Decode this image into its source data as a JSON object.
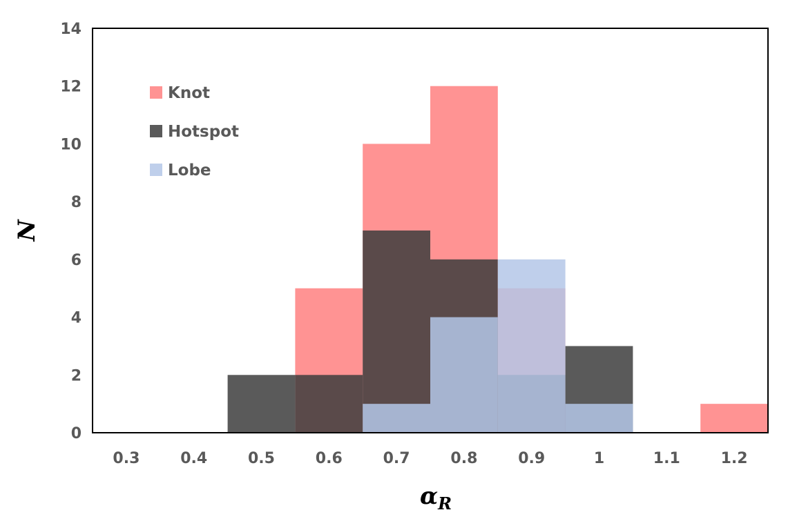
{
  "chart_data": {
    "type": "histogram",
    "title": "",
    "xlabel": "α",
    "xlabel_subscript": "R",
    "ylabel": "N",
    "x_tick_labels": [
      "0.3",
      "0.4",
      "0.5",
      "0.6",
      "0.7",
      "0.8",
      "0.9",
      "1",
      "1.1",
      "1.2"
    ],
    "x_ticks": [
      0.3,
      0.4,
      0.5,
      0.6,
      0.7,
      0.8,
      0.9,
      1.0,
      1.1,
      1.2
    ],
    "y_tick_labels": [
      "0",
      "2",
      "4",
      "6",
      "8",
      "10",
      "12",
      "14"
    ],
    "y_ticks": [
      0,
      2,
      4,
      6,
      8,
      10,
      12,
      14
    ],
    "xlim": [
      0.25,
      1.25
    ],
    "ylim": [
      0,
      14
    ],
    "bin_width": 0.1,
    "grid": false,
    "legend_position": "top-left",
    "series": [
      {
        "name": "Knot",
        "color": "#ff8080",
        "opacity": 0.85,
        "bins": [
          0.3,
          0.4,
          0.5,
          0.6,
          0.7,
          0.8,
          0.9,
          1.0,
          1.1,
          1.2
        ],
        "values": [
          0,
          0,
          0,
          5,
          10,
          12,
          5,
          0,
          0,
          1
        ]
      },
      {
        "name": "Hotspot",
        "color": "#3d3d3d",
        "opacity": 0.85,
        "bins": [
          0.3,
          0.4,
          0.5,
          0.6,
          0.7,
          0.8,
          0.9,
          1.0,
          1.1,
          1.2
        ],
        "values": [
          0,
          0,
          2,
          2,
          7,
          6,
          2,
          3,
          0,
          0
        ]
      },
      {
        "name": "Lobe",
        "color": "#b4c7e7",
        "opacity": 0.85,
        "bins": [
          0.3,
          0.4,
          0.5,
          0.6,
          0.7,
          0.8,
          0.9,
          1.0,
          1.1,
          1.2
        ],
        "values": [
          0,
          0,
          0,
          0,
          1,
          4,
          6,
          1,
          0,
          0
        ]
      }
    ]
  }
}
